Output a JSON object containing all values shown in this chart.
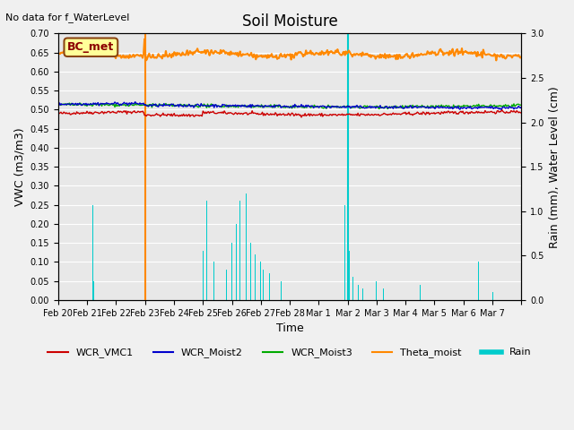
{
  "title": "Soil Moisture",
  "ylabel_left": "VWC (m3/m3)",
  "ylabel_right": "Rain (mm), Water Level (cm)",
  "xlabel": "Time",
  "annotation_text": "No data for f_WaterLevel",
  "bc_met_label": "BC_met",
  "ylim_left": [
    0.0,
    0.7
  ],
  "ylim_right": [
    0.0,
    3.0
  ],
  "yticks_left": [
    0.0,
    0.05,
    0.1,
    0.15,
    0.2,
    0.25,
    0.3,
    0.35,
    0.4,
    0.45,
    0.5,
    0.55,
    0.6,
    0.65,
    0.7
  ],
  "yticks_right": [
    0.0,
    0.5,
    1.0,
    1.5,
    2.0,
    2.5,
    3.0
  ],
  "xtick_positions": [
    0,
    1,
    2,
    3,
    4,
    5,
    6,
    7,
    8,
    9,
    10,
    11,
    12,
    13,
    14,
    15,
    16
  ],
  "xtick_labels": [
    "Feb 20",
    "Feb 21",
    "Feb 22",
    "Feb 23",
    "Feb 24",
    "Feb 25",
    "Feb 26",
    "Feb 27",
    "Feb 28",
    "Mar 1",
    "Mar 2",
    "Mar 3",
    "Mar 4",
    "Mar 5",
    "Mar 6",
    "Mar 7",
    ""
  ],
  "colors": {
    "WCR_VMC1": "#cc0000",
    "WCR_Moist2": "#0000cc",
    "WCR_Moist3": "#00aa00",
    "Theta_moist": "#ff8800",
    "Rain": "#00cccc",
    "orange_vline": "#ff8800",
    "cyan_vline": "#00cccc"
  },
  "background_color": "#e8e8e8",
  "fig_background": "#f0f0f0",
  "grid_color": "#ffffff",
  "num_points": 500
}
